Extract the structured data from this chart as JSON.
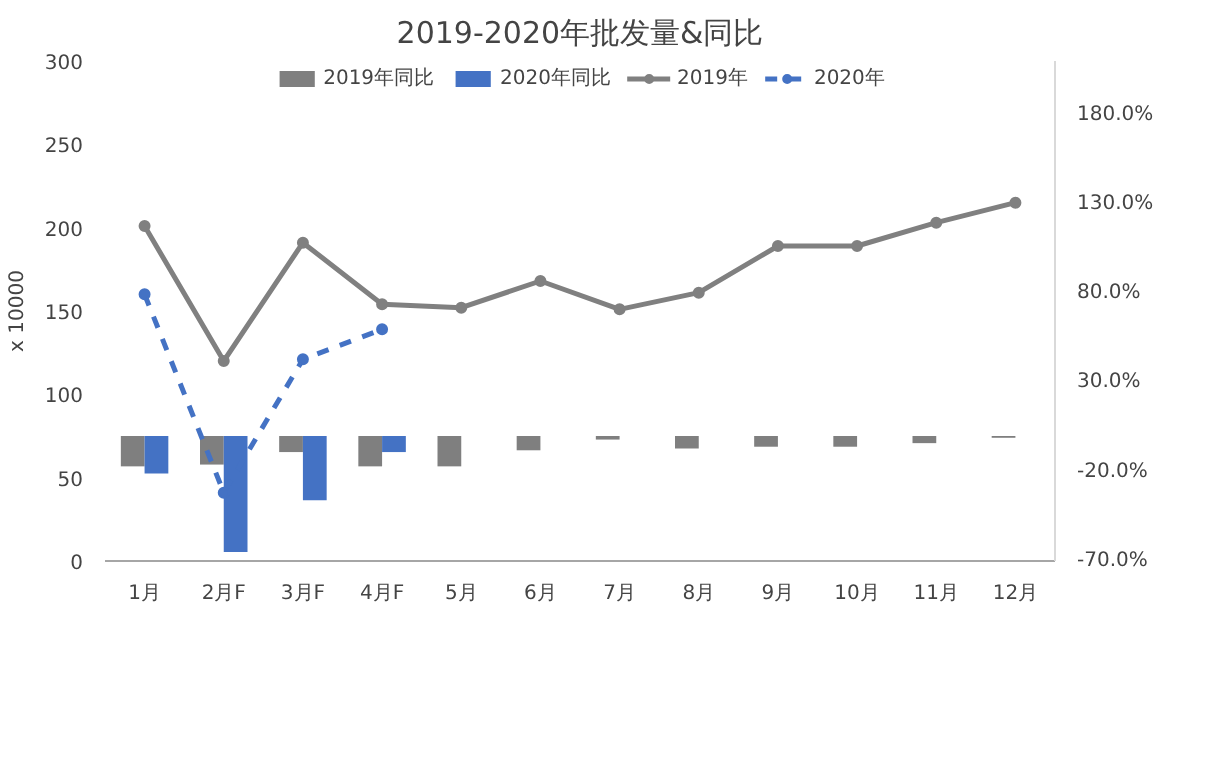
{
  "chart_data": {
    "type": "line",
    "title": "2019-2020年批发量&同比",
    "ylabel": "x 10000",
    "categories": [
      "1月",
      "2月F",
      "3月F",
      "4月F",
      "5月",
      "6月",
      "7月",
      "8月",
      "9月",
      "10月",
      "11月",
      "12月"
    ],
    "series": [
      {
        "name": "2019年同比",
        "type": "bar",
        "axis": "y2",
        "color": "#7f7f7f",
        "values": [
          -17,
          -16,
          -9,
          -17,
          -17,
          -8,
          -2,
          -7,
          -6,
          -6,
          -4,
          -1
        ]
      },
      {
        "name": "2020年同比",
        "type": "bar",
        "axis": "y2",
        "color": "#4472c4",
        "values": [
          -21,
          -65,
          -36,
          -9,
          null,
          null,
          null,
          null,
          null,
          null,
          null,
          null
        ]
      },
      {
        "name": "2019年",
        "color": "#808080",
        "values": [
          201,
          120,
          191,
          154,
          152,
          168,
          151,
          161,
          189,
          189,
          203,
          215
        ]
      },
      {
        "name": "2020年",
        "color": "#4472c4",
        "line_style": "dashed",
        "values": [
          160,
          41,
          121,
          139,
          null,
          null,
          null,
          null,
          null,
          null,
          null,
          null
        ]
      }
    ],
    "ylim": [
      0,
      300
    ],
    "yticks": [
      0,
      50,
      100,
      150,
      200,
      250,
      300
    ],
    "y2lim": [
      -70,
      210
    ],
    "y2ticks": [
      {
        "value": -70,
        "label": "-70.0%"
      },
      {
        "value": -20,
        "label": "-20.0%"
      },
      {
        "value": 30,
        "label": "30.0%"
      },
      {
        "value": 80,
        "label": "80.0%"
      },
      {
        "value": 130,
        "label": "130.0%"
      },
      {
        "value": 180,
        "label": "180.0%"
      }
    ],
    "marker": "circle",
    "legend": "top",
    "grid": false
  }
}
